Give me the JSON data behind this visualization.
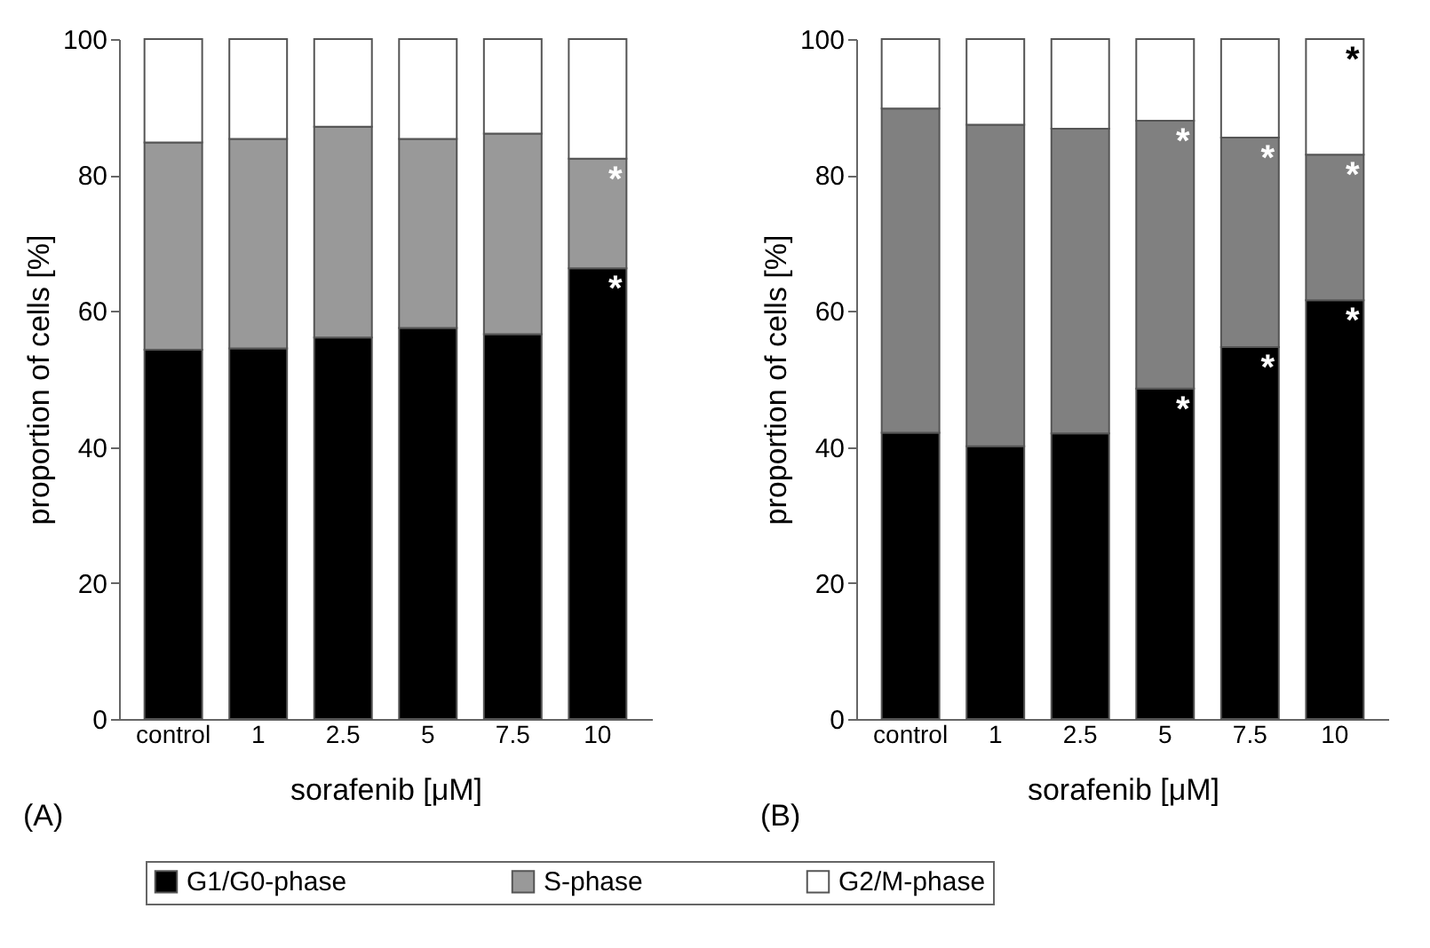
{
  "chart_data": [
    {
      "type": "bar",
      "stacked": true,
      "categories": [
        "control",
        "1",
        "2.5",
        "5",
        "7.5",
        "10"
      ],
      "ylabel": "proportion of cells [%]",
      "xlabel": "sorafenib [μM]",
      "ylim": [
        0,
        100
      ],
      "yticks": [
        0,
        20,
        40,
        60,
        80,
        100
      ],
      "legend": "bottom",
      "annotations": [
        "(A)",
        {
          "text": "*",
          "x": "10",
          "y": 82.4
        },
        {
          "text": "*",
          "x": "10",
          "y": 66.3
        }
      ],
      "series": [
        {
          "name": "G1/G0-phase",
          "color": "#000000",
          "values": [
            54.3,
            54.5,
            56.1,
            57.5,
            56.6,
            66.3
          ]
        },
        {
          "name": "S-phase",
          "color": "#999999",
          "values": [
            30.5,
            30.8,
            31.0,
            27.8,
            29.5,
            16.1
          ]
        },
        {
          "name": "G2/M-phase",
          "color": "#ffffff",
          "values": [
            15.2,
            14.7,
            12.9,
            14.7,
            13.9,
            17.6
          ]
        }
      ]
    },
    {
      "type": "bar",
      "stacked": true,
      "categories": [
        "control",
        "1",
        "2.5",
        "5",
        "7.5",
        "10"
      ],
      "ylabel": "proportion of cells [%]",
      "xlabel": "sorafenib [μM]",
      "ylim": [
        0,
        100
      ],
      "yticks": [
        0,
        20,
        40,
        60,
        80,
        100
      ],
      "annotations": [
        "(B)",
        {
          "text": "*",
          "x": "5",
          "y": 88.0
        },
        {
          "text": "*",
          "x": "5",
          "y": 48.6
        },
        {
          "text": "*",
          "x": "7.5",
          "y": 85.5
        },
        {
          "text": "*",
          "x": "7.5",
          "y": 54.7
        },
        {
          "text": "*",
          "x": "10",
          "y": 83.0
        },
        {
          "text": "*",
          "x": "10",
          "y": 61.6
        },
        {
          "text": "*",
          "x": "10",
          "y": 100
        }
      ],
      "series": [
        {
          "color": "#000000",
          "values": [
            42.1,
            40.1,
            42.0,
            48.6,
            54.7,
            61.6
          ]
        },
        {
          "color": "#808080",
          "values": [
            47.7,
            47.3,
            44.8,
            39.4,
            30.8,
            21.4
          ]
        },
        {
          "color": "#ffffff",
          "values": [
            10.2,
            12.6,
            13.2,
            12.0,
            14.5,
            17.0
          ]
        }
      ]
    }
  ]
}
